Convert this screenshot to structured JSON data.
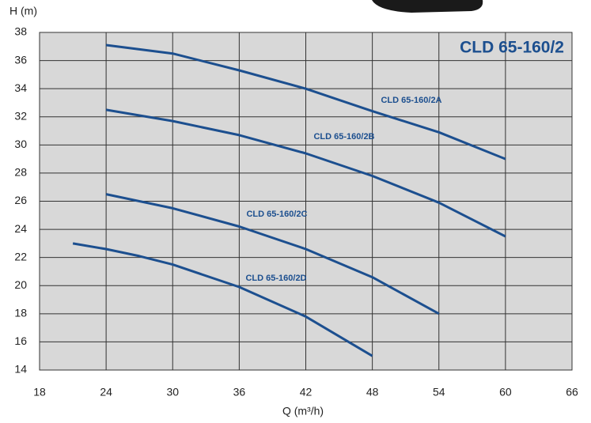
{
  "chart_data": {
    "type": "line",
    "title": "CLD 65-160/2",
    "x_label": "Q (m³/h)",
    "y_label": "H (m)",
    "xlim": [
      18,
      66
    ],
    "xticks": [
      18,
      24,
      30,
      36,
      42,
      48,
      54,
      60,
      66
    ],
    "ylim": [
      14,
      38
    ],
    "yticks": [
      14,
      16,
      18,
      20,
      22,
      24,
      26,
      28,
      30,
      32,
      34,
      36,
      38
    ],
    "grid": true,
    "series": [
      {
        "name": "CLD 65-160/2A",
        "color": "#1c4f8f",
        "x": [
          24,
          30,
          36,
          42,
          48,
          54,
          60
        ],
        "values": [
          37.1,
          36.5,
          35.3,
          34.0,
          32.4,
          30.9,
          29.0
        ]
      },
      {
        "name": "CLD 65-160/2B",
        "color": "#1c4f8f",
        "x": [
          24,
          30,
          36,
          42,
          48,
          54,
          60
        ],
        "values": [
          32.5,
          31.7,
          30.7,
          29.4,
          27.8,
          25.9,
          23.5
        ]
      },
      {
        "name": "CLD 65-160/2C",
        "color": "#1c4f8f",
        "x": [
          24,
          30,
          36,
          42,
          48,
          54
        ],
        "values": [
          26.5,
          25.5,
          24.2,
          22.6,
          20.6,
          18.0
        ]
      },
      {
        "name": "CLD 65-160/2D",
        "color": "#1c4f8f",
        "x": [
          21,
          24,
          27,
          30,
          36,
          42,
          48
        ],
        "values": [
          23.0,
          22.6,
          22.1,
          21.5,
          19.9,
          17.8,
          15.0
        ]
      }
    ]
  }
}
